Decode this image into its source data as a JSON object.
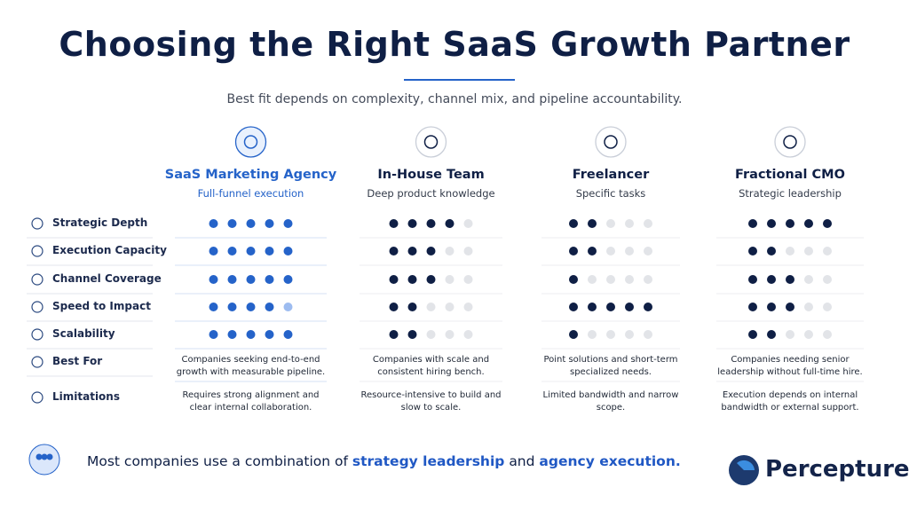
{
  "header": {
    "title": "Choosing the Right SaaS Growth Partner",
    "subtitle": "Best fit depends on complexity, channel mix, and pipeline accountability."
  },
  "rows": [
    "Strategic Depth",
    "Execution Capacity",
    "Channel Coverage",
    "Speed to Impact",
    "Scalability",
    "Best For",
    "Limitations"
  ],
  "options": [
    {
      "name": "SaaS Marketing Agency",
      "tagline": "Full-funnel execution",
      "ratings": [
        5,
        5,
        5,
        4.5,
        5
      ],
      "best_for": "Companies seeking end-to-end growth with measurable pipeline.",
      "limitations": "Requires strong alignment and clear internal collaboration."
    },
    {
      "name": "In-House Team",
      "tagline": "Deep product knowledge",
      "ratings": [
        4,
        3,
        3,
        2,
        2
      ],
      "best_for": "Companies with scale and consistent hiring bench.",
      "limitations": "Resource-intensive to build and slow to scale."
    },
    {
      "name": "Freelancer",
      "tagline": "Specific tasks",
      "ratings": [
        2,
        2,
        1,
        5,
        1
      ],
      "best_for": "Point solutions and short-term specialized needs.",
      "limitations": "Limited bandwidth and narrow scope."
    },
    {
      "name": "Fractional CMO",
      "tagline": "Strategic leadership",
      "ratings": [
        5,
        2,
        3,
        3,
        2
      ],
      "best_for": "Companies needing senior leadership without full-time hire.",
      "limitations": "Execution depends on internal bandwidth or external support."
    }
  ],
  "footer": {
    "prefix": "Most companies use a combination of",
    "highlight_1": "strategy leadership",
    "joiner": "and",
    "highlight_2": "agency execution."
  },
  "brand": "Percepture"
}
